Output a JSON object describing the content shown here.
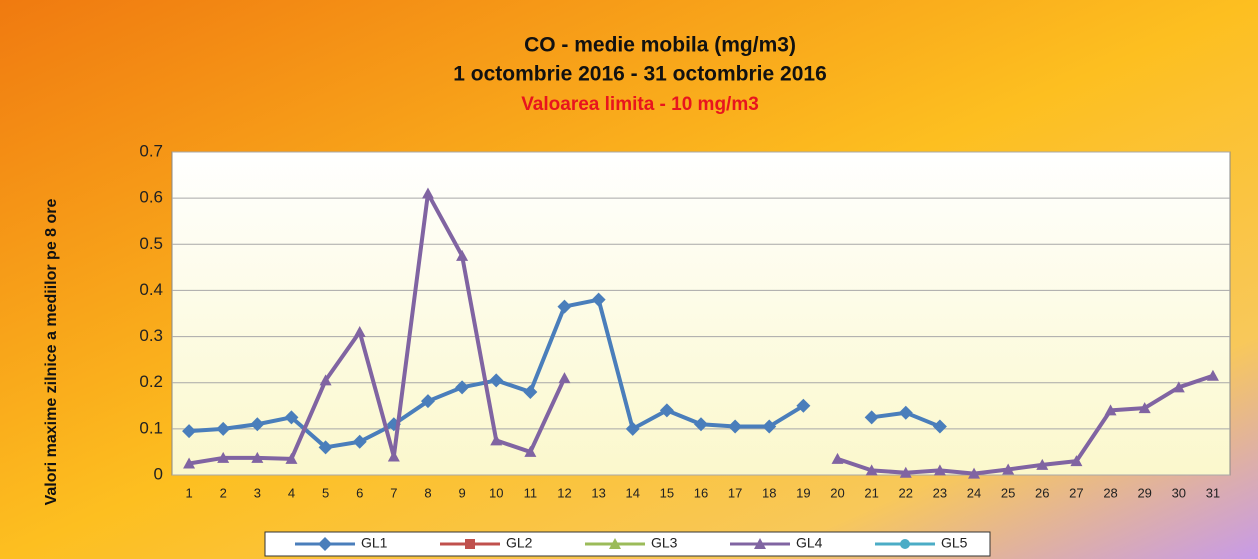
{
  "chart_data": {
    "type": "line",
    "title": "CO - medie mobila (mg/m3)",
    "subtitle": "1 octombrie 2016 - 31 octombrie 2016",
    "annotation": "Valoarea limita - 10 mg/m3",
    "y_label": "Valori maxime zilnice a mediilor pe 8 ore",
    "categories": [
      "1",
      "2",
      "3",
      "4",
      "5",
      "6",
      "7",
      "8",
      "9",
      "10",
      "11",
      "12",
      "13",
      "14",
      "15",
      "16",
      "17",
      "18",
      "19",
      "20",
      "21",
      "22",
      "23",
      "24",
      "25",
      "26",
      "27",
      "28",
      "29",
      "30",
      "31"
    ],
    "ylim": [
      0,
      0.7
    ],
    "yticks": [
      0,
      0.1,
      0.2,
      0.3,
      0.4,
      0.5,
      0.6,
      0.7
    ],
    "grid": true,
    "legend": "bottom",
    "series": [
      {
        "name": "GL1",
        "color": "#4a7ebb",
        "marker": "diamond",
        "values": [
          0.095,
          0.1,
          0.11,
          0.125,
          0.06,
          0.072,
          0.11,
          0.16,
          0.19,
          0.205,
          0.18,
          0.365,
          0.38,
          0.1,
          0.14,
          0.11,
          0.105,
          0.105,
          0.15,
          null,
          0.125,
          0.135,
          0.105,
          null,
          null,
          null,
          null,
          null,
          null,
          null,
          null
        ]
      },
      {
        "name": "GL2",
        "color": "#c0504d",
        "marker": "square",
        "values": [
          null,
          null,
          null,
          null,
          null,
          null,
          null,
          null,
          null,
          null,
          null,
          null,
          null,
          null,
          null,
          null,
          null,
          null,
          null,
          null,
          null,
          null,
          null,
          null,
          null,
          null,
          null,
          null,
          null,
          null,
          null
        ]
      },
      {
        "name": "GL3",
        "color": "#9bbb59",
        "marker": "triangle",
        "values": [
          null,
          null,
          null,
          null,
          null,
          null,
          null,
          null,
          null,
          null,
          null,
          null,
          null,
          null,
          null,
          null,
          null,
          null,
          null,
          null,
          null,
          null,
          null,
          null,
          null,
          null,
          null,
          null,
          null,
          null,
          null
        ]
      },
      {
        "name": "GL4",
        "color": "#8064a2",
        "marker": "triangle",
        "values": [
          0.025,
          0.037,
          0.037,
          0.035,
          0.205,
          0.31,
          0.04,
          0.61,
          0.475,
          0.075,
          0.05,
          0.21,
          null,
          null,
          null,
          null,
          null,
          null,
          null,
          0.035,
          0.01,
          0.005,
          0.01,
          0.003,
          0.012,
          0.022,
          0.03,
          0.14,
          0.145,
          0.19,
          0.215
        ]
      },
      {
        "name": "GL5",
        "color": "#4bacc6",
        "marker": "circle",
        "values": [
          null,
          null,
          null,
          null,
          null,
          null,
          null,
          null,
          null,
          null,
          null,
          null,
          null,
          null,
          null,
          null,
          null,
          null,
          null,
          null,
          null,
          null,
          null,
          null,
          null,
          null,
          null,
          null,
          null,
          null,
          null
        ]
      }
    ]
  }
}
